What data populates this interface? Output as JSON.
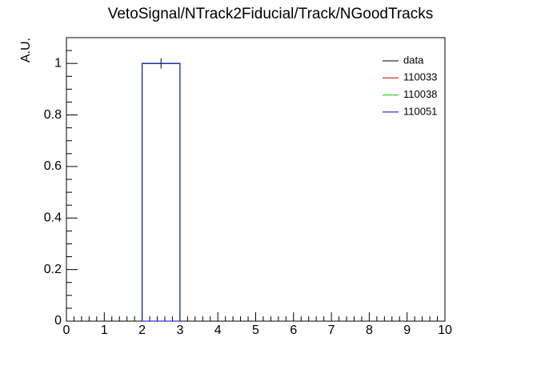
{
  "chart_data": {
    "type": "histogram",
    "title": "VetoSignal/NTrack2Fiducial/Track/NGoodTracks",
    "y_label": "A.U.",
    "bins": [
      0,
      1,
      2,
      3,
      4,
      5,
      6,
      7,
      8,
      9,
      10
    ],
    "series": [
      {
        "name": "data",
        "color": "#000000",
        "values": [
          0,
          0,
          1,
          0,
          0,
          0,
          0,
          0,
          0,
          0
        ],
        "errors": [
          0,
          0,
          0.02,
          0,
          0,
          0,
          0,
          0,
          0,
          0
        ]
      },
      {
        "name": "110033",
        "color": "#cc0000",
        "values": [
          0,
          0,
          1,
          0,
          0,
          0,
          0,
          0,
          0,
          0
        ]
      },
      {
        "name": "110038",
        "color": "#00cc00",
        "values": [
          0,
          0,
          1,
          0,
          0,
          0,
          0,
          0,
          0,
          0
        ]
      },
      {
        "name": "110051",
        "color": "#0000cc",
        "values": [
          0,
          0,
          1,
          0,
          0,
          0,
          0,
          0,
          0,
          0
        ]
      }
    ],
    "xlim": [
      0,
      10
    ],
    "xticks": [
      0,
      1,
      2,
      3,
      4,
      5,
      6,
      7,
      8,
      9,
      10
    ],
    "ylim": [
      0,
      1.1
    ],
    "yticks": [
      0,
      0.2,
      0.4,
      0.6,
      0.8,
      1
    ],
    "legend": "upper right"
  }
}
